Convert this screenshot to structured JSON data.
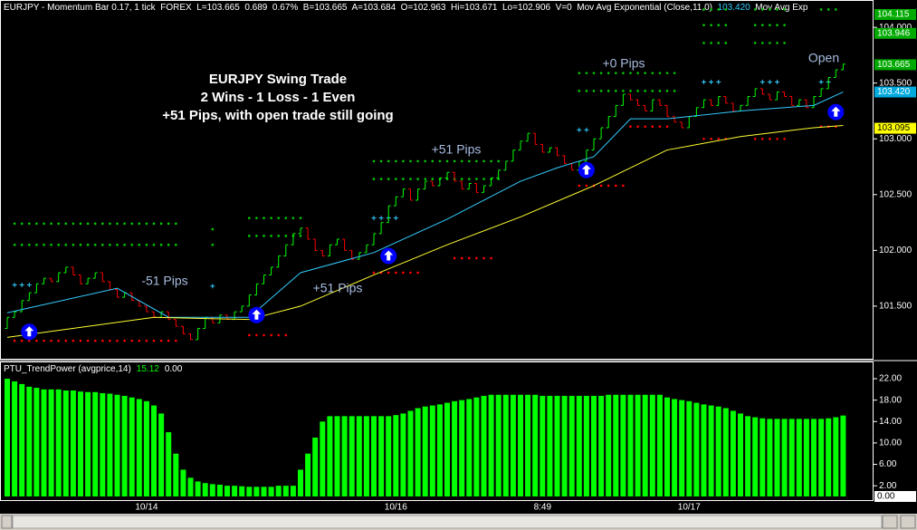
{
  "header": [
    {
      "text": "EURJPY - Momentum Bar 0.17, 1 tick  FOREX  L=103.665  0.689  0.67%  B=103.665  A=103.684  O=102.963  Hi=103.671  Lo=102.906  V=0  Mov Avg Exponential (Close,11,0)  ",
      "color": "#ffffff"
    },
    {
      "text": "103.420",
      "color": "#33ccff"
    },
    {
      "text": "  Mov Avg Exp",
      "color": "#ffffff"
    }
  ],
  "chart_data": [
    {
      "type": "ohlc",
      "title_lines": [
        "EURJPY Swing Trade",
        "2 Wins - 1 Loss - 1 Even",
        "+51 Pips, with open trade still going"
      ],
      "annotations": [
        "-51 Pips",
        "+51 Pips",
        "+51 Pips",
        "+0 Pips",
        "Open"
      ],
      "up_color": "#00ff00",
      "down_color": "#ff0000",
      "open": [
        101.3,
        101.4,
        101.45,
        101.55,
        101.62,
        101.7,
        101.75,
        101.72,
        101.8,
        101.85,
        101.78,
        101.7,
        101.75,
        101.8,
        101.72,
        101.65,
        101.58,
        101.62,
        101.55,
        101.5,
        101.45,
        101.4,
        101.45,
        101.38,
        101.32,
        101.25,
        101.2,
        101.3,
        101.4,
        101.35,
        101.42,
        101.38,
        101.45,
        101.5,
        101.6,
        101.7,
        101.78,
        101.85,
        101.95,
        102.05,
        102.15,
        102.2,
        102.1,
        102.0,
        101.95,
        102.05,
        102.1,
        102.0,
        101.92,
        101.98,
        102.05,
        102.15,
        102.25,
        102.4,
        102.48,
        102.55,
        102.45,
        102.55,
        102.62,
        102.58,
        102.65,
        102.7,
        102.62,
        102.55,
        102.6,
        102.52,
        102.58,
        102.65,
        102.72,
        102.8,
        102.9,
        102.98,
        103.05,
        102.95,
        102.88,
        102.92,
        102.85,
        102.78,
        102.72,
        102.8,
        102.9,
        103.0,
        103.1,
        103.2,
        103.3,
        103.4,
        103.35,
        103.3,
        103.25,
        103.35,
        103.3,
        103.2,
        103.15,
        103.1,
        103.2,
        103.28,
        103.35,
        103.3,
        103.38,
        103.32,
        103.25,
        103.3,
        103.38,
        103.45,
        103.4,
        103.35,
        103.42,
        103.38,
        103.3,
        103.35,
        103.28,
        103.38,
        103.45,
        103.55,
        103.62
      ],
      "close": [
        101.4,
        101.45,
        101.55,
        101.62,
        101.7,
        101.75,
        101.72,
        101.8,
        101.85,
        101.78,
        101.7,
        101.75,
        101.8,
        101.72,
        101.65,
        101.58,
        101.62,
        101.55,
        101.5,
        101.45,
        101.4,
        101.45,
        101.38,
        101.32,
        101.25,
        101.2,
        101.3,
        101.4,
        101.35,
        101.42,
        101.38,
        101.45,
        101.5,
        101.6,
        101.7,
        101.78,
        101.85,
        101.95,
        102.05,
        102.15,
        102.2,
        102.1,
        102.0,
        101.95,
        102.05,
        102.1,
        102.0,
        101.92,
        101.98,
        102.05,
        102.15,
        102.25,
        102.4,
        102.48,
        102.55,
        102.45,
        102.55,
        102.62,
        102.58,
        102.65,
        102.7,
        102.62,
        102.55,
        102.6,
        102.52,
        102.58,
        102.65,
        102.72,
        102.8,
        102.9,
        102.98,
        103.05,
        102.95,
        102.88,
        102.92,
        102.85,
        102.78,
        102.72,
        102.8,
        102.9,
        103.0,
        103.1,
        103.2,
        103.3,
        103.4,
        103.35,
        103.3,
        103.25,
        103.35,
        103.3,
        103.2,
        103.15,
        103.1,
        103.2,
        103.28,
        103.35,
        103.3,
        103.38,
        103.32,
        103.25,
        103.3,
        103.38,
        103.45,
        103.4,
        103.35,
        103.42,
        103.38,
        103.3,
        103.35,
        103.28,
        103.38,
        103.45,
        103.55,
        103.62,
        103.67
      ],
      "series": [
        {
          "color": "#33ccff",
          "x": [
            0,
            15,
            22,
            33,
            40,
            50,
            60,
            70,
            75,
            80,
            85,
            90,
            100,
            110,
            114
          ],
          "values": [
            101.44,
            101.66,
            101.4,
            101.4,
            101.8,
            101.98,
            102.28,
            102.62,
            102.74,
            102.84,
            103.18,
            103.18,
            103.25,
            103.3,
            103.42
          ]
        },
        {
          "color": "#ffff33",
          "x": [
            0,
            20,
            33,
            40,
            50,
            60,
            70,
            80,
            90,
            100,
            110,
            114
          ],
          "values": [
            101.22,
            101.4,
            101.38,
            101.5,
            101.78,
            102.05,
            102.3,
            102.58,
            102.9,
            103.02,
            103.1,
            103.12
          ]
        }
      ],
      "levels": [
        {
          "value": 102.24,
          "start": 1,
          "end": 23,
          "style": "dot",
          "color": "#00cc00"
        },
        {
          "value": 102.05,
          "start": 1,
          "end": 23,
          "style": "dot",
          "color": "#00cc00"
        },
        {
          "value": 101.69,
          "start": 1,
          "end": 3,
          "style": "plus",
          "color": "#33ccff"
        },
        {
          "value": 101.19,
          "start": 1,
          "end": 23,
          "style": "dot",
          "color": "#ff0000"
        },
        {
          "value": 102.19,
          "start": 28,
          "end": 28,
          "style": "dot",
          "color": "#00cc00"
        },
        {
          "value": 102.05,
          "start": 28,
          "end": 28,
          "style": "dot",
          "color": "#00cc00"
        },
        {
          "value": 101.68,
          "start": 28,
          "end": 28,
          "style": "plus",
          "color": "#33ccff"
        },
        {
          "value": 102.29,
          "start": 33,
          "end": 40,
          "style": "dot",
          "color": "#00cc00"
        },
        {
          "value": 102.13,
          "start": 33,
          "end": 40,
          "style": "dot",
          "color": "#00cc00"
        },
        {
          "value": 101.24,
          "start": 33,
          "end": 38,
          "style": "dot",
          "color": "#ff0000"
        },
        {
          "value": 102.8,
          "start": 50,
          "end": 67,
          "style": "dot",
          "color": "#00cc00"
        },
        {
          "value": 102.64,
          "start": 50,
          "end": 67,
          "style": "dot",
          "color": "#00cc00"
        },
        {
          "value": 102.29,
          "start": 50,
          "end": 53,
          "style": "plus",
          "color": "#33ccff"
        },
        {
          "value": 101.8,
          "start": 50,
          "end": 56,
          "style": "dot",
          "color": "#ff0000"
        },
        {
          "value": 101.93,
          "start": 61,
          "end": 66,
          "style": "dot",
          "color": "#ff0000"
        },
        {
          "value": 103.59,
          "start": 78,
          "end": 91,
          "style": "dot",
          "color": "#00cc00"
        },
        {
          "value": 103.43,
          "start": 78,
          "end": 91,
          "style": "dot",
          "color": "#00cc00"
        },
        {
          "value": 103.08,
          "start": 78,
          "end": 79,
          "style": "plus",
          "color": "#33ccff"
        },
        {
          "value": 102.58,
          "start": 78,
          "end": 84,
          "style": "dot",
          "color": "#ff0000"
        },
        {
          "value": 103.11,
          "start": 85,
          "end": 90,
          "style": "dot",
          "color": "#ff0000"
        },
        {
          "value": 104.16,
          "start": 95,
          "end": 98,
          "style": "dot",
          "color": "#00cc00"
        },
        {
          "value": 104.02,
          "start": 95,
          "end": 98,
          "style": "dot",
          "color": "#00cc00"
        },
        {
          "value": 103.86,
          "start": 95,
          "end": 98,
          "style": "dot",
          "color": "#00cc00"
        },
        {
          "value": 103.51,
          "start": 95,
          "end": 97,
          "style": "plus",
          "color": "#33ccff"
        },
        {
          "value": 103.0,
          "start": 95,
          "end": 98,
          "style": "dot",
          "color": "#ff0000"
        },
        {
          "value": 104.16,
          "start": 102,
          "end": 106,
          "style": "dot",
          "color": "#00cc00"
        },
        {
          "value": 104.02,
          "start": 102,
          "end": 106,
          "style": "dot",
          "color": "#00cc00"
        },
        {
          "value": 103.86,
          "start": 102,
          "end": 106,
          "style": "dot",
          "color": "#00cc00"
        },
        {
          "value": 103.51,
          "start": 103,
          "end": 105,
          "style": "plus",
          "color": "#33ccff"
        },
        {
          "value": 103.0,
          "start": 102,
          "end": 106,
          "style": "dot",
          "color": "#ff0000"
        },
        {
          "value": 104.16,
          "start": 111,
          "end": 113,
          "style": "dot",
          "color": "#00cc00"
        },
        {
          "value": 103.51,
          "start": 111,
          "end": 112,
          "style": "plus",
          "color": "#33ccff"
        },
        {
          "value": 103.11,
          "start": 111,
          "end": 113,
          "style": "dot",
          "color": "#ff0000"
        }
      ],
      "signals": {
        "x": [
          3,
          34,
          52,
          79,
          113
        ],
        "values": [
          101.27,
          101.42,
          101.95,
          102.72,
          103.24
        ],
        "color": "#0000ff"
      },
      "ylim": [
        101.02,
        104.245
      ],
      "yticks": [
        {
          "value": 104.0,
          "label": "104.000"
        },
        {
          "value": 103.5,
          "label": "103.500"
        },
        {
          "value": 103.0,
          "label": "103.000"
        },
        {
          "value": 102.5,
          "label": "102.500"
        },
        {
          "value": 102.0,
          "label": "102.000"
        },
        {
          "value": 101.5,
          "label": "101.500"
        }
      ],
      "price_markers": [
        {
          "value": 104.115,
          "label": "104.115",
          "color": "#00aa00",
          "text_color": "#ffffff"
        },
        {
          "value": 103.946,
          "label": "103.946",
          "color": "#00aa00",
          "text_color": "#ffffff"
        },
        {
          "value": 103.665,
          "label": "103.665",
          "color": "#00aa00",
          "text_color": "#ffffff"
        },
        {
          "value": 103.42,
          "label": "103.420",
          "color": "#00aadd",
          "text_color": "#ffffff"
        },
        {
          "value": 103.095,
          "label": "103.095",
          "color": "#ffff00",
          "text_color": "#000000"
        }
      ]
    },
    {
      "type": "bar",
      "title": "PTU_TrendPower (avgprice,14)",
      "readouts": [
        {
          "value": 15.12,
          "color": "#00ff00"
        },
        {
          "value": 0,
          "label": "0.00",
          "color": "#ffffff"
        }
      ],
      "color": "#00ff00",
      "categories": [
        null,
        null,
        null,
        null,
        null,
        null,
        null,
        null,
        null,
        null,
        null,
        null,
        null,
        null,
        null,
        null,
        null,
        null,
        null,
        "10/14",
        null,
        null,
        null,
        null,
        null,
        null,
        null,
        null,
        null,
        null,
        null,
        null,
        null,
        null,
        null,
        null,
        null,
        null,
        null,
        null,
        null,
        null,
        null,
        null,
        null,
        null,
        null,
        null,
        null,
        null,
        null,
        null,
        null,
        "10/16",
        null,
        null,
        null,
        null,
        null,
        null,
        null,
        null,
        null,
        null,
        null,
        null,
        null,
        null,
        null,
        null,
        null,
        null,
        null,
        "8:49",
        null,
        null,
        null,
        null,
        null,
        null,
        null,
        null,
        null,
        null,
        null,
        null,
        null,
        null,
        null,
        null,
        null,
        null,
        null,
        "10/17",
        null,
        null,
        null,
        null,
        null,
        null,
        null,
        null,
        null,
        null,
        null,
        null,
        null,
        null,
        null,
        null,
        null,
        null,
        null,
        null,
        null
      ],
      "values": [
        22,
        21.5,
        21,
        20.5,
        20.3,
        20,
        20,
        20,
        19.8,
        19.8,
        19.6,
        19.5,
        19.5,
        19.3,
        19.2,
        19,
        18.8,
        18.5,
        18.2,
        17.8,
        17,
        15.5,
        12,
        8,
        5,
        3.5,
        2.8,
        2.5,
        2.3,
        2.2,
        2,
        2,
        1.9,
        1.8,
        1.8,
        1.8,
        1.8,
        2,
        2,
        2,
        5,
        8,
        11,
        14,
        15,
        15,
        15,
        15,
        15,
        15,
        15,
        15,
        15,
        15.2,
        15.5,
        16,
        16.5,
        16.8,
        17,
        17.2,
        17.5,
        17.8,
        18,
        18.2,
        18.5,
        18.8,
        19,
        19,
        19,
        19,
        19,
        19,
        19,
        18.8,
        18.8,
        18.8,
        18.8,
        18.8,
        18.8,
        18.8,
        18.8,
        18.8,
        19,
        19,
        19,
        19,
        19,
        19,
        19,
        19,
        18.5,
        18.2,
        18,
        17.8,
        17.5,
        17.2,
        17,
        16.8,
        16.5,
        16,
        15.5,
        15,
        14.8,
        14.6,
        14.5,
        14.5,
        14.5,
        14.5,
        14.5,
        14.5,
        14.5,
        14.5,
        14.6,
        14.8,
        15.12
      ],
      "ylim": [
        -0.85,
        25.05
      ],
      "yticks": [
        {
          "value": 22,
          "label": "22.00"
        },
        {
          "value": 18,
          "label": "18.00"
        },
        {
          "value": 14,
          "label": "14.00"
        },
        {
          "value": 10,
          "label": "10.00"
        },
        {
          "value": 6,
          "label": "6.00"
        },
        {
          "value": 2,
          "label": "2.00"
        }
      ],
      "price_markers": [
        {
          "value": 0,
          "label": "0.00",
          "color": "#ffffff",
          "text_color": "#000000"
        }
      ]
    }
  ]
}
